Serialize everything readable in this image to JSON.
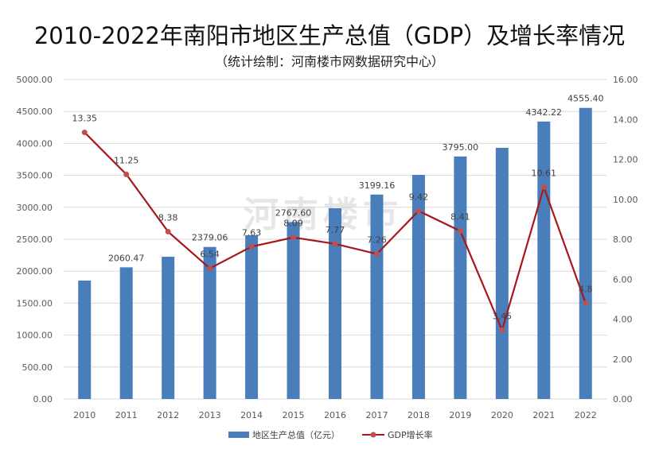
{
  "chart_data": {
    "type": "bar+line",
    "title": "2010-2022年南阳市地区生产总值（GDP）及增长率情况",
    "subtitle": "（统计绘制：河南楼市网数据研究中心）",
    "watermark": "河南楼市",
    "categories": [
      "2010",
      "2011",
      "2012",
      "2013",
      "2014",
      "2015",
      "2016",
      "2017",
      "2018",
      "2019",
      "2020",
      "2021",
      "2022"
    ],
    "series": [
      {
        "name": "地区生产总值（亿元）",
        "type": "bar",
        "axis": "left",
        "color": "#4a7ebb",
        "values": [
          1853,
          2060.47,
          2226,
          2379.06,
          2562,
          2767.6,
          2985,
          3199.16,
          3507,
          3795.0,
          3930,
          4342.22,
          4555.4
        ],
        "labels": [
          "",
          "2060.47",
          "",
          "2379.06",
          "",
          "2767.60",
          "",
          "3199.16",
          "",
          "3795.00",
          "",
          "4342.22",
          "4555.40"
        ]
      },
      {
        "name": "GDP增长率",
        "type": "line",
        "axis": "right",
        "color": "#a8171d",
        "values": [
          13.35,
          11.25,
          8.38,
          6.54,
          7.63,
          8.09,
          7.77,
          7.26,
          9.42,
          8.41,
          3.45,
          10.61,
          4.8
        ],
        "labels": [
          "13.35",
          "11.25",
          "8.38",
          "6.54",
          "7.63",
          "8.09",
          "7.77",
          "7.26",
          "9.42",
          "8.41",
          "3.45",
          "10.61",
          "4.8"
        ]
      }
    ],
    "y_left": {
      "min": 0,
      "max": 5000,
      "ticks": [
        "0.00",
        "500.00",
        "1000.00",
        "1500.00",
        "2000.00",
        "2500.00",
        "3000.00",
        "3500.00",
        "4000.00",
        "4500.00",
        "5000.00"
      ]
    },
    "y_right": {
      "min": 0,
      "max": 16,
      "ticks": [
        "0.00",
        "2.00",
        "4.00",
        "6.00",
        "8.00",
        "10.00",
        "12.00",
        "14.00",
        "16.00"
      ]
    },
    "grid": true,
    "legend_position": "bottom"
  }
}
